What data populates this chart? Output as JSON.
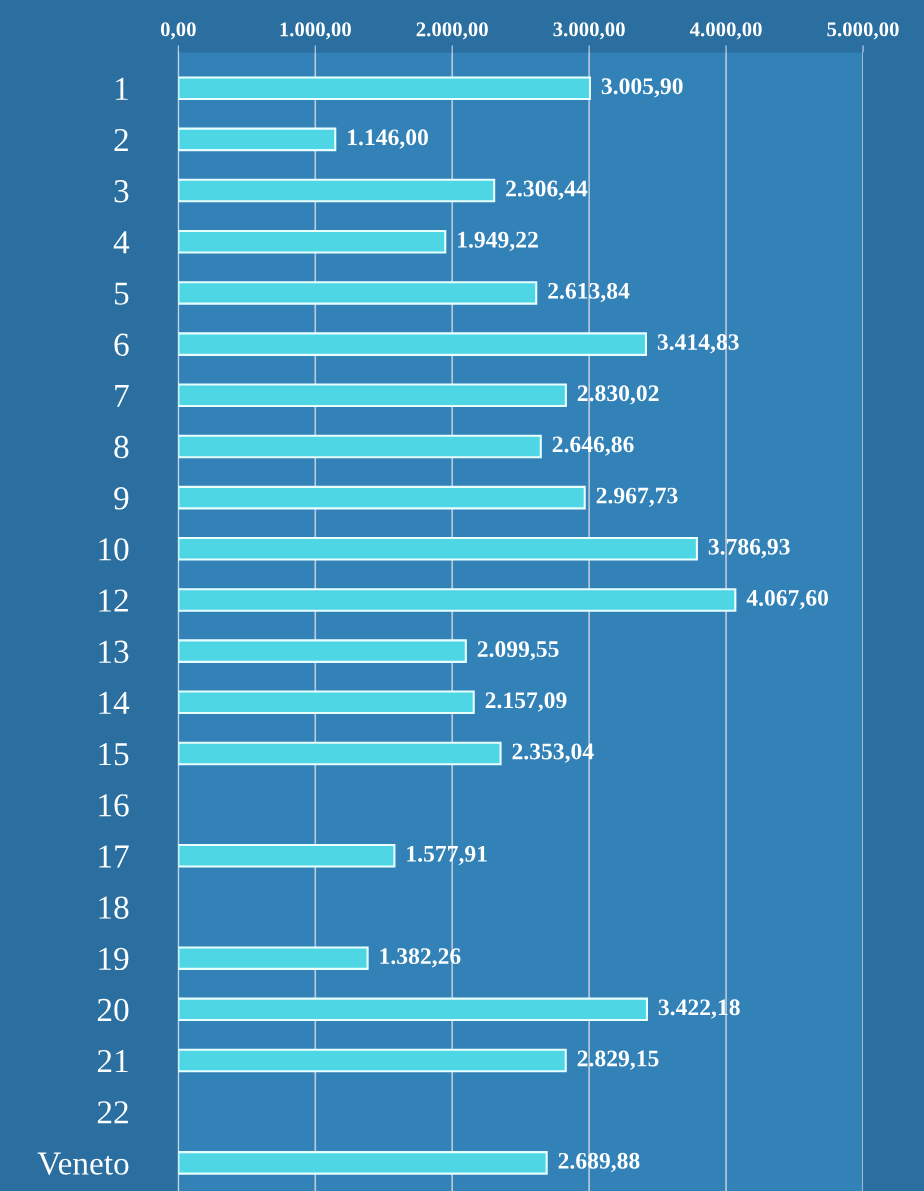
{
  "chart_data": {
    "type": "bar",
    "orientation": "horizontal",
    "categories": [
      "1",
      "2",
      "3",
      "4",
      "5",
      "6",
      "7",
      "8",
      "9",
      "10",
      "12",
      "13",
      "14",
      "15",
      "16",
      "17",
      "18",
      "19",
      "20",
      "21",
      "22",
      "Veneto"
    ],
    "values": [
      3005.9,
      1146.0,
      2306.44,
      1949.22,
      2613.84,
      3414.83,
      2830.02,
      2646.86,
      2967.73,
      3786.93,
      4067.6,
      2099.55,
      2157.09,
      2353.04,
      null,
      1577.91,
      null,
      1382.26,
      3422.18,
      2829.15,
      null,
      2689.88
    ],
    "value_labels": [
      "3.005,90",
      "1.146,00",
      "2.306,44",
      "1.949,22",
      "2.613,84",
      "3.414,83",
      "2.830,02",
      "2.646,86",
      "2.967,73",
      "3.786,93",
      "4.067,60",
      "2.099,55",
      "2.157,09",
      "2.353,04",
      null,
      "1.577,91",
      null,
      "1.382,26",
      "3.422,18",
      "2.829,15",
      null,
      "2.689,88"
    ],
    "color": "#4fd6e4",
    "xlim": [
      0,
      5000
    ],
    "xticks": [
      {
        "value": 0,
        "label": "0,00"
      },
      {
        "value": 1000,
        "label": "1.000,00"
      },
      {
        "value": 2000,
        "label": "2.000,00"
      },
      {
        "value": 3000,
        "label": "3.000,00"
      },
      {
        "value": 4000,
        "label": "4.000,00"
      },
      {
        "value": 5000,
        "label": "5.000,00"
      }
    ],
    "grid": "x",
    "legend": false
  }
}
